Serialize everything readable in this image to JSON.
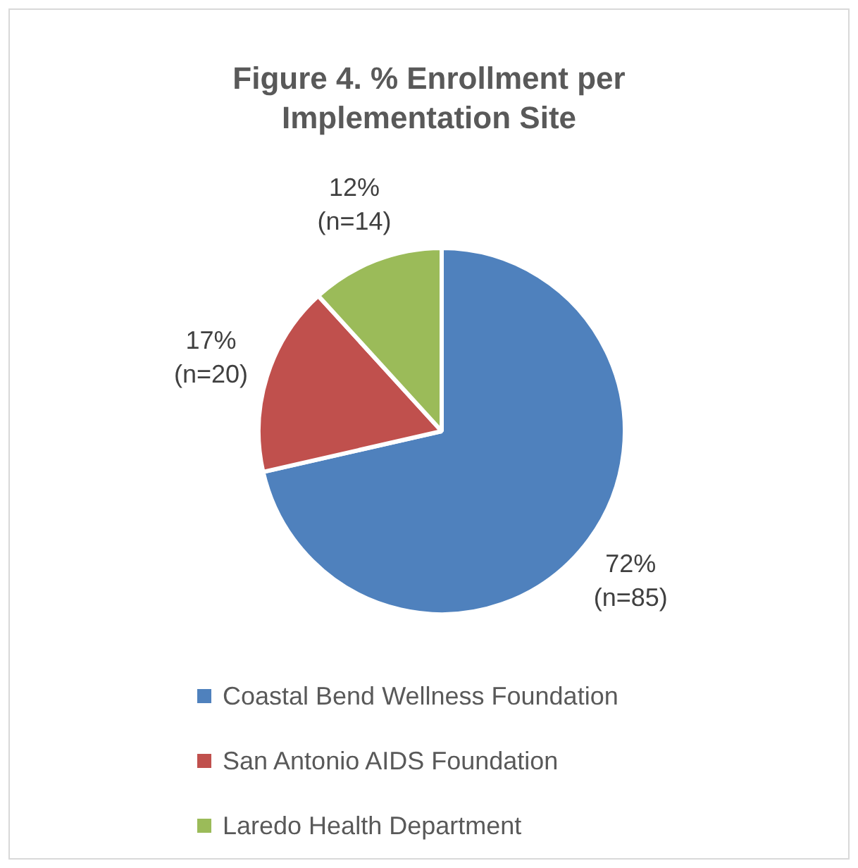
{
  "chart_data": {
    "type": "pie",
    "title": "Figure 4. % Enrollment per Implementation Site",
    "categories": [
      "Coastal Bend Wellness Foundation",
      "San Antonio AIDS Foundation",
      "Laredo Health Department"
    ],
    "values": [
      85,
      20,
      14
    ],
    "colors": [
      "#4f81bd",
      "#c0504d",
      "#9bbb59"
    ],
    "value_labels": [
      "72%\n(n=85)",
      "17%\n(n=20)",
      "12%\n(n=14)"
    ],
    "legend": "bottom"
  }
}
